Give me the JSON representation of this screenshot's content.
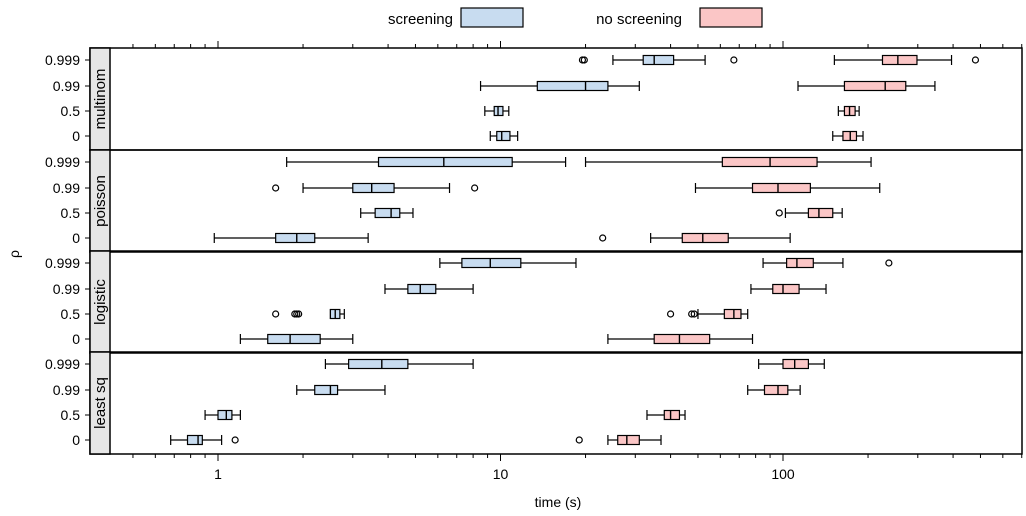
{
  "chart_data": {
    "type": "box",
    "xlabel": "time (s)",
    "ylabel": "ρ",
    "x_scale": "log",
    "xlim": [
      0.4,
      1000
    ],
    "x_ticks": [
      1,
      10,
      100
    ],
    "legend": {
      "placement": "top",
      "entries": [
        {
          "label": "screening",
          "color": "#c8dcf0"
        },
        {
          "label": "no screening",
          "color": "#fbc6c6"
        }
      ]
    },
    "categories": [
      "0.999",
      "0.99",
      "0.5",
      "0"
    ],
    "colors": {
      "screening": "#c8dcf0",
      "no_screening": "#fbc6c6"
    },
    "panels": [
      {
        "name": "multinom",
        "screening": {
          "0.999": {
            "lw": 25,
            "q1": 32,
            "med": 35,
            "q3": 41,
            "uw": 53,
            "outliers": [
              19.5,
              19.8,
              67
            ]
          },
          "0.99": {
            "lw": 8.5,
            "q1": 13.5,
            "med": 20,
            "q3": 24,
            "uw": 31,
            "outliers": []
          },
          "0.5": {
            "lw": 8.8,
            "q1": 9.5,
            "med": 9.8,
            "q3": 10.2,
            "uw": 10.7,
            "outliers": []
          },
          "0": {
            "lw": 9.2,
            "q1": 9.7,
            "med": 10.1,
            "q3": 10.8,
            "uw": 11.5,
            "outliers": []
          }
        },
        "no_screening": {
          "0.999": {
            "lw": 152,
            "q1": 225,
            "med": 255,
            "q3": 298,
            "uw": 395,
            "outliers": [
              480
            ]
          },
          "0.99": {
            "lw": 113,
            "q1": 165,
            "med": 230,
            "q3": 272,
            "uw": 345,
            "outliers": []
          },
          "0.5": {
            "lw": 157,
            "q1": 165,
            "med": 172,
            "q3": 180,
            "uw": 186,
            "outliers": []
          },
          "0": {
            "lw": 150,
            "q1": 163,
            "med": 173,
            "q3": 182,
            "uw": 192,
            "outliers": []
          }
        }
      },
      {
        "name": "poisson",
        "screening": {
          "0.999": {
            "lw": 1.75,
            "q1": 3.7,
            "med": 6.3,
            "q3": 11,
            "uw": 17,
            "outliers": []
          },
          "0.99": {
            "lw": 2,
            "q1": 3,
            "med": 3.5,
            "q3": 4.2,
            "uw": 6.6,
            "outliers": [
              1.6,
              8.1
            ]
          },
          "0.5": {
            "lw": 3.2,
            "q1": 3.6,
            "med": 4.1,
            "q3": 4.4,
            "uw": 4.9,
            "outliers": []
          },
          "0": {
            "lw": 0.97,
            "q1": 1.6,
            "med": 1.9,
            "q3": 2.2,
            "uw": 3.4,
            "outliers": []
          }
        },
        "no_screening": {
          "0.999": {
            "lw": 20,
            "q1": 61,
            "med": 90,
            "q3": 132,
            "uw": 205,
            "outliers": []
          },
          "0.99": {
            "lw": 49,
            "q1": 78,
            "med": 96,
            "q3": 125,
            "uw": 220,
            "outliers": []
          },
          "0.5": {
            "lw": 102,
            "q1": 123,
            "med": 134,
            "q3": 150,
            "uw": 162,
            "outliers": [
              97
            ]
          },
          "0": {
            "lw": 34,
            "q1": 44,
            "med": 52,
            "q3": 64,
            "uw": 106,
            "outliers": [
              23
            ]
          }
        }
      },
      {
        "name": "logistic",
        "screening": {
          "0.999": {
            "lw": 6.1,
            "q1": 7.3,
            "med": 9.2,
            "q3": 11.8,
            "uw": 18.5,
            "outliers": []
          },
          "0.99": {
            "lw": 3.9,
            "q1": 4.7,
            "med": 5.2,
            "q3": 5.9,
            "uw": 8,
            "outliers": []
          },
          "0.5": {
            "lw": 2.5,
            "q1": 2.5,
            "med": 2.6,
            "q3": 2.7,
            "uw": 2.8,
            "outliers": [
              1.6,
              1.87,
              1.9,
              1.93
            ]
          },
          "0": {
            "lw": 1.2,
            "q1": 1.5,
            "med": 1.8,
            "q3": 2.3,
            "uw": 3,
            "outliers": []
          }
        },
        "no_screening": {
          "0.999": {
            "lw": 85,
            "q1": 103,
            "med": 112,
            "q3": 128,
            "uw": 163,
            "outliers": [
              237
            ]
          },
          "0.99": {
            "lw": 77,
            "q1": 92,
            "med": 100,
            "q3": 114,
            "uw": 142,
            "outliers": []
          },
          "0.5": {
            "lw": 50,
            "q1": 62,
            "med": 67,
            "q3": 71,
            "uw": 75,
            "outliers": [
              40,
              47.5,
              48.5
            ]
          },
          "0": {
            "lw": 24,
            "q1": 35,
            "med": 43,
            "q3": 55,
            "uw": 78,
            "outliers": []
          }
        }
      },
      {
        "name": "least sq",
        "screening": {
          "0.999": {
            "lw": 2.4,
            "q1": 2.9,
            "med": 3.8,
            "q3": 4.7,
            "uw": 8,
            "outliers": []
          },
          "0.99": {
            "lw": 1.9,
            "q1": 2.2,
            "med": 2.5,
            "q3": 2.65,
            "uw": 3.9,
            "outliers": []
          },
          "0.5": {
            "lw": 0.9,
            "q1": 1.0,
            "med": 1.07,
            "q3": 1.12,
            "uw": 1.2,
            "outliers": []
          },
          "0": {
            "lw": 0.68,
            "q1": 0.78,
            "med": 0.85,
            "q3": 0.88,
            "uw": 1.03,
            "outliers": [
              1.15
            ]
          }
        },
        "no_screening": {
          "0.999": {
            "lw": 82,
            "q1": 100,
            "med": 110,
            "q3": 123,
            "uw": 140,
            "outliers": []
          },
          "0.99": {
            "lw": 75,
            "q1": 86,
            "med": 96,
            "q3": 104,
            "uw": 115,
            "outliers": []
          },
          "0.5": {
            "lw": 33,
            "q1": 38,
            "med": 40,
            "q3": 43,
            "uw": 45,
            "outliers": []
          },
          "0": {
            "lw": 24,
            "q1": 26,
            "med": 28,
            "q3": 31,
            "uw": 37,
            "outliers": [
              19
            ]
          }
        }
      }
    ]
  }
}
